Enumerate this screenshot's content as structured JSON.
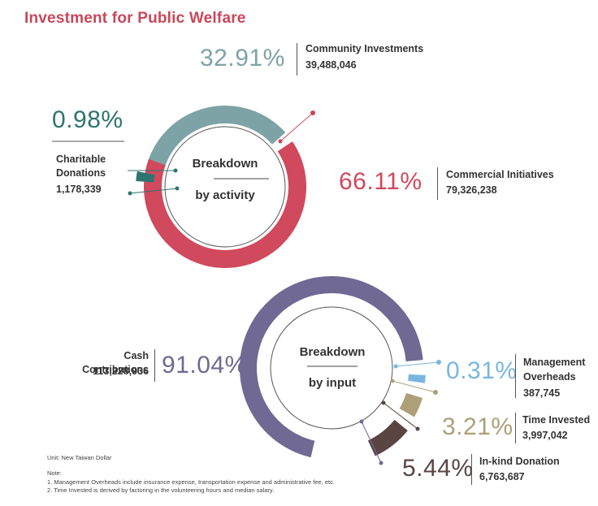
{
  "title": "Investment for Public Welfare",
  "colors": {
    "title": "#c9475a",
    "community": "#7ea3a7",
    "commercial": "#d0495d",
    "charitable": "#2e7470",
    "cash": "#6f6993",
    "management": "#79b6df",
    "time": "#ad9f78",
    "inkind": "#5a4543"
  },
  "chart_data": [
    {
      "type": "pie",
      "center_label_line1": "Breakdown",
      "center_label_line2": "by activity",
      "slices": [
        {
          "label": "Community Investments",
          "percent": "32.91%",
          "value": 39488046,
          "value_text": "39,488,046"
        },
        {
          "label": "Commercial Initiatives",
          "percent": "66.11%",
          "value": 79326238,
          "value_text": "79,326,238"
        },
        {
          "label_line1": "Charitable",
          "label_line2": "Donations",
          "percent": "0.98%",
          "value": 1178339,
          "value_text": "1,178,339"
        }
      ]
    },
    {
      "type": "pie",
      "center_label_line1": "Breakdown",
      "center_label_line2": "by input",
      "slices": [
        {
          "label": "Cash Contributions",
          "percent": "91.04%",
          "value": 113228936,
          "value_text": "113,228,936"
        },
        {
          "label_line1": "Management",
          "label_line2": "Overheads",
          "percent": "0.31%",
          "value": 387745,
          "value_text": "387,745"
        },
        {
          "label": "Time Invested",
          "percent": "3.21%",
          "value": 3997042,
          "value_text": "3,997,042"
        },
        {
          "label": "In-kind Donation",
          "percent": "5.44%",
          "value": 6763687,
          "value_text": "6,763,687"
        }
      ]
    }
  ],
  "notes": {
    "unit": "Unit: New Taiwan Dollar",
    "heading": "Note:",
    "line1": "1. Management Overheads include insurance expense, transportation expense and administrative fee, etc.",
    "line2": "2. Time Invested is derived by factoring in the volunteering hours and median salary."
  }
}
